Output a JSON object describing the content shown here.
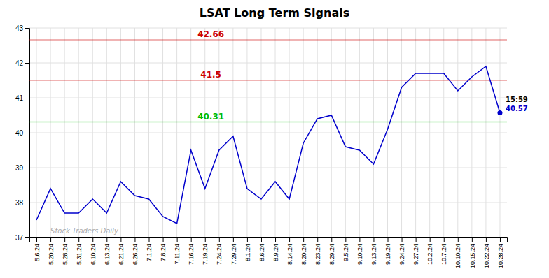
{
  "chart_data": {
    "type": "line",
    "title": "LSAT Long Term Signals",
    "categories": [
      "5.6.24",
      "5.20.24",
      "5.28.24",
      "5.31.24",
      "6.10.24",
      "6.13.24",
      "6.21.24",
      "6.26.24",
      "7.1.24",
      "7.8.24",
      "7.11.24",
      "7.16.24",
      "7.19.24",
      "7.24.24",
      "7.29.24",
      "8.1.24",
      "8.6.24",
      "8.9.24",
      "8.14.24",
      "8.20.24",
      "8.23.24",
      "8.29.24",
      "9.5.24",
      "9.10.24",
      "9.13.24",
      "9.19.24",
      "9.24.24",
      "9.27.24",
      "10.2.24",
      "10.7.24",
      "10.10.24",
      "10.15.24",
      "10.22.24",
      "10.28.24"
    ],
    "values": [
      37.5,
      38.4,
      37.7,
      37.7,
      38.1,
      37.7,
      38.6,
      38.2,
      38.1,
      37.6,
      37.4,
      39.5,
      38.4,
      39.5,
      39.9,
      38.4,
      38.1,
      38.6,
      38.1,
      39.7,
      40.4,
      40.5,
      39.6,
      39.5,
      39.1,
      40.1,
      41.3,
      41.7,
      41.7,
      41.7,
      41.2,
      41.6,
      41.9,
      40.57
    ],
    "color": "#0000cc",
    "marker": "last",
    "hlines": [
      {
        "value": 42.66,
        "label": "42.66",
        "color": "#cc0000"
      },
      {
        "value": 41.5,
        "label": "41.5",
        "color": "#cc0000"
      },
      {
        "value": 40.31,
        "label": "40.31",
        "color": "#00bb00"
      }
    ],
    "annotations": [
      "15:59",
      "40.57"
    ],
    "watermark": "Stock Traders Daily",
    "ylim": [
      37,
      43
    ],
    "yticks": [
      37,
      38,
      39,
      40,
      41,
      42,
      43
    ],
    "grid": true
  }
}
